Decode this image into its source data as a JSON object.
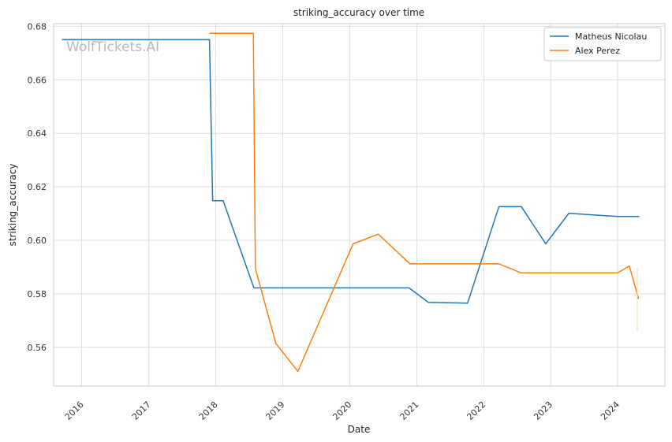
{
  "chart_data": {
    "type": "line",
    "title": "striking_accuracy over time",
    "xlabel": "Date",
    "ylabel": "striking_accuracy",
    "xlim": [
      "2015-08-01",
      "2024-09-15"
    ],
    "ylim": [
      0.5455,
      0.681
    ],
    "x_ticks": [
      "2016",
      "2017",
      "2018",
      "2019",
      "2020",
      "2021",
      "2022",
      "2023",
      "2024"
    ],
    "y_ticks": [
      "0.56",
      "0.58",
      "0.60",
      "0.62",
      "0.64",
      "0.66",
      "0.68"
    ],
    "grid": true,
    "legend_position": "top-right",
    "watermark": "WolfTickets.AI",
    "series": [
      {
        "name": "Matheus Nicolau",
        "color": "#1f77b4",
        "points": [
          [
            "2015-09-15",
            0.675
          ],
          [
            "2017-11-28",
            0.675
          ],
          [
            "2017-12-15",
            0.6148
          ],
          [
            "2018-02-10",
            0.6148
          ],
          [
            "2018-07-28",
            0.5822
          ],
          [
            "2020-11-20",
            0.5822
          ],
          [
            "2021-03-05",
            0.5768
          ],
          [
            "2021-10-05",
            0.5765
          ],
          [
            "2022-03-25",
            0.6126
          ],
          [
            "2022-07-25",
            0.6126
          ],
          [
            "2022-12-05",
            0.5987
          ],
          [
            "2023-04-10",
            0.6101
          ],
          [
            "2024-01-01",
            0.6089
          ],
          [
            "2024-04-28",
            0.6089
          ]
        ]
      },
      {
        "name": "Alex Perez",
        "color": "#ff7f0e",
        "points": [
          [
            "2017-11-28",
            0.6774
          ],
          [
            "2018-07-25",
            0.6774
          ],
          [
            "2018-08-05",
            0.5894
          ],
          [
            "2018-11-25",
            0.5614
          ],
          [
            "2019-03-25",
            0.551
          ],
          [
            "2020-01-20",
            0.5987
          ],
          [
            "2020-06-05",
            0.6023
          ],
          [
            "2020-11-25",
            0.5912
          ],
          [
            "2022-03-25",
            0.5912
          ],
          [
            "2022-07-25",
            0.5878
          ],
          [
            "2024-01-01",
            0.5878
          ],
          [
            "2024-03-05",
            0.5904
          ],
          [
            "2024-04-25",
            0.578
          ]
        ]
      }
    ]
  }
}
